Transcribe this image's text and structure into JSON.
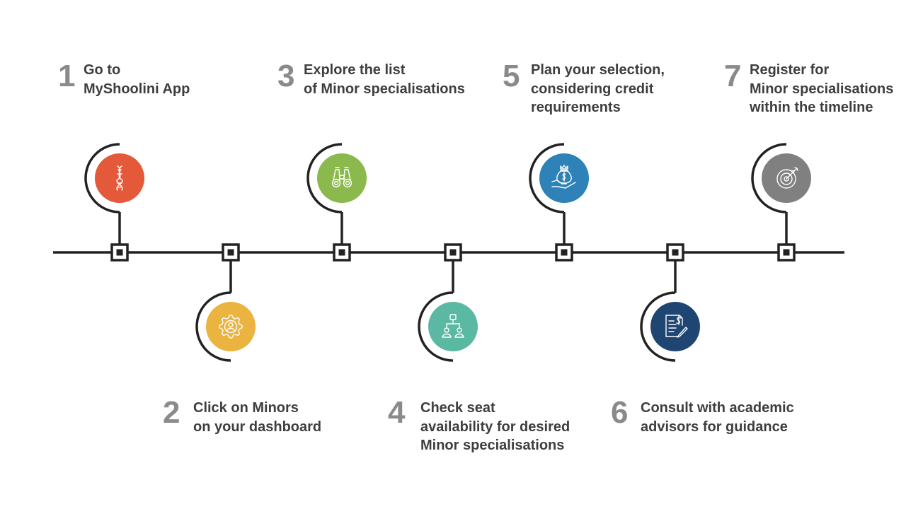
{
  "steps": [
    {
      "number": "1",
      "lines": [
        "Go to",
        "MyShoolini App"
      ],
      "color": "#e3593a",
      "icon": "dna-icon"
    },
    {
      "number": "2",
      "lines": [
        "Click on Minors",
        "on your dashboard"
      ],
      "color": "#ebb340",
      "icon": "gear-person-icon"
    },
    {
      "number": "3",
      "lines": [
        "Explore the list",
        "of Minor specialisations"
      ],
      "color": "#8bb94d",
      "icon": "binoculars-icon"
    },
    {
      "number": "4",
      "lines": [
        "Check seat",
        "availability for desired",
        "Minor specialisations"
      ],
      "color": "#5bb8a2",
      "icon": "org-chart-icon"
    },
    {
      "number": "5",
      "lines": [
        "Plan your selection,",
        "considering credit",
        "requirements"
      ],
      "color": "#2e82b7",
      "icon": "money-hand-icon"
    },
    {
      "number": "6",
      "lines": [
        "Consult with academic",
        "advisors for guidance"
      ],
      "color": "#1f4573",
      "icon": "contract-icon"
    },
    {
      "number": "7",
      "lines": [
        "Register for",
        "Minor specialisations",
        "within the timeline"
      ],
      "color": "#808080",
      "icon": "target-icon"
    }
  ],
  "line_color": "#222222"
}
